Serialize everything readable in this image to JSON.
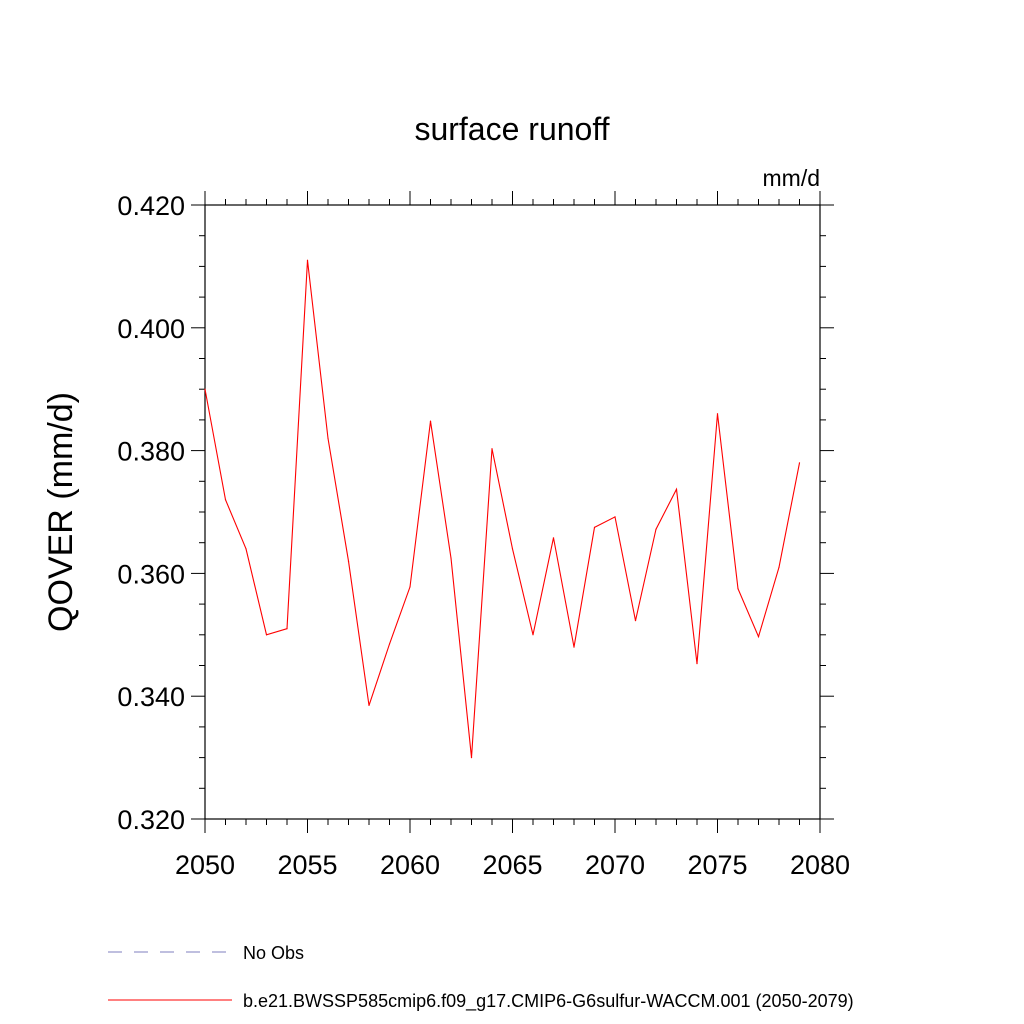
{
  "chart_data": {
    "type": "line",
    "title": "surface runoff",
    "units_label": "mm/d",
    "ylabel": "QOVER  (mm/d)",
    "xlabel": "",
    "xlim": [
      2050,
      2080
    ],
    "ylim": [
      0.32,
      0.42
    ],
    "x_ticks": [
      2050,
      2055,
      2060,
      2065,
      2070,
      2075,
      2080
    ],
    "x_tick_labels": [
      "2050",
      "2055",
      "2060",
      "2065",
      "2070",
      "2075",
      "2080"
    ],
    "y_ticks": [
      0.32,
      0.34,
      0.36,
      0.38,
      0.4,
      0.42
    ],
    "y_tick_labels": [
      "0.320",
      "0.340",
      "0.360",
      "0.380",
      "0.400",
      "0.420"
    ],
    "grid": false,
    "legend_position": "bottom",
    "legend": [
      {
        "label": "No Obs",
        "color": "#7f7fbf",
        "dash": "dashed"
      },
      {
        "label": "b.e21.BWSSP585cmip6.f09_g17.CMIP6-G6sulfur-WACCM.001 (2050-2079)",
        "color": "#ff0000",
        "dash": "solid"
      }
    ],
    "series": [
      {
        "name": "b.e21.BWSSP585cmip6.f09_g17.CMIP6-G6sulfur-WACCM.001 (2050-2079)",
        "color": "#ff0000",
        "x": [
          2050,
          2051,
          2052,
          2053,
          2054,
          2055,
          2056,
          2057,
          2058,
          2059,
          2060,
          2061,
          2062,
          2063,
          2064,
          2065,
          2066,
          2067,
          2068,
          2069,
          2070,
          2071,
          2072,
          2073,
          2074,
          2075,
          2076,
          2077,
          2078,
          2079
        ],
        "values": [
          0.39,
          0.372,
          0.364,
          0.35,
          0.351,
          0.411,
          0.382,
          0.362,
          0.3385,
          0.3485,
          0.3578,
          0.3848,
          0.3625,
          0.33,
          0.3803,
          0.364,
          0.35,
          0.3658,
          0.348,
          0.3675,
          0.3692,
          0.3523,
          0.3672,
          0.3737,
          0.3453,
          0.386,
          0.3575,
          0.3497,
          0.361,
          0.378
        ]
      }
    ]
  }
}
